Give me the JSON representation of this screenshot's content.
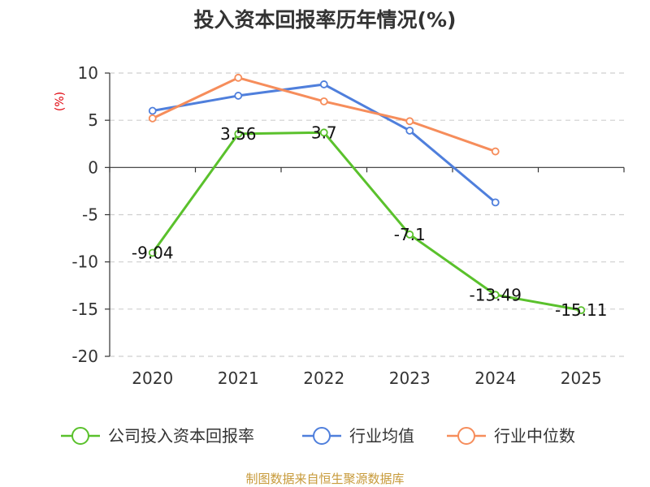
{
  "chart_data": {
    "type": "line",
    "title": "投入资本回报率历年情况(%)",
    "unit_label": "(%)",
    "categories": [
      "2020",
      "2021",
      "2022",
      "2023",
      "2024",
      "2025"
    ],
    "ylim": [
      -20,
      10
    ],
    "yticks": [
      10,
      5,
      0,
      -5,
      -10,
      -15,
      -20
    ],
    "grid": true,
    "legend_position": "bottom",
    "series": [
      {
        "name": "公司投入资本回报率",
        "color": "#5ac12c",
        "values": [
          -9.04,
          3.56,
          3.7,
          -7.1,
          -13.49,
          -15.11
        ],
        "labels": [
          "-9.04",
          "3.56",
          "3.7",
          "-7.1",
          "-13.49",
          "-15.11"
        ]
      },
      {
        "name": "行业均值",
        "color": "#4f7fdc",
        "values": [
          6.0,
          7.6,
          8.8,
          3.9,
          -3.7,
          null
        ]
      },
      {
        "name": "行业中位数",
        "color": "#f68d5b",
        "values": [
          5.2,
          9.5,
          7.0,
          4.9,
          1.7,
          null
        ]
      }
    ],
    "source": "制图数据来自恒生聚源数据库"
  }
}
